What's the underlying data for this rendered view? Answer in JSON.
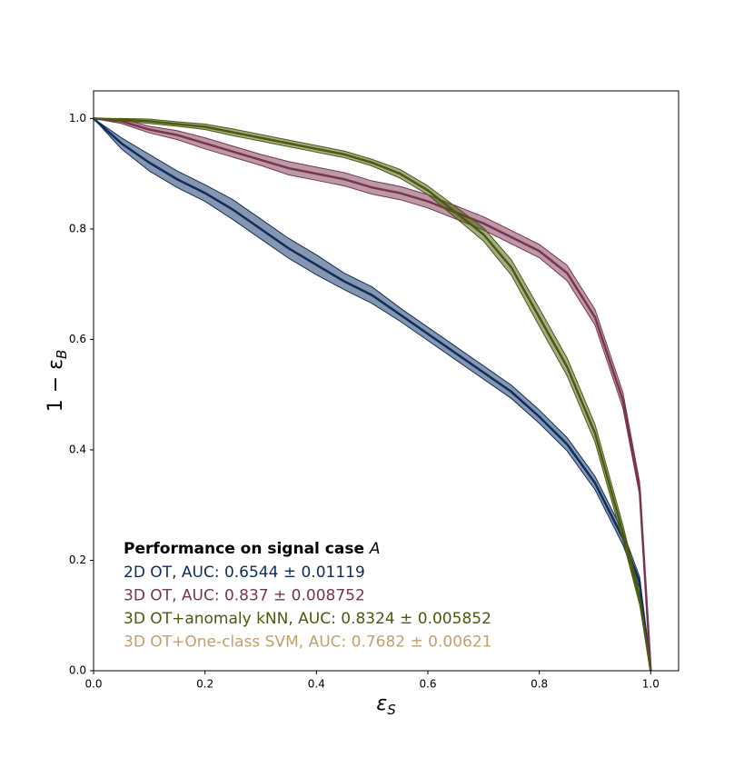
{
  "chart_data": {
    "type": "line",
    "xlabel": "ε",
    "xlabel_sub": "S",
    "ylabel": "1 − ε",
    "ylabel_sub": "B",
    "xlim": [
      0,
      1.05
    ],
    "ylim": [
      0,
      1.05
    ],
    "xticks": [
      {
        "value": 0,
        "label": "0.0"
      },
      0.2,
      0.4,
      0.6,
      0.8,
      {
        "value": 1,
        "label": "1.0"
      }
    ],
    "yticks": [
      {
        "value": 0,
        "label": "0.0"
      },
      0.2,
      0.4,
      0.6,
      0.8,
      {
        "value": 1,
        "label": "1.0"
      }
    ],
    "legend_title": "Performance on signal case ",
    "legend_title_symbol": "A",
    "legend": "lower left",
    "x": [
      0,
      0.05,
      0.1,
      0.15,
      0.2,
      0.25,
      0.3,
      0.35,
      0.4,
      0.45,
      0.5,
      0.55,
      0.6,
      0.65,
      0.7,
      0.75,
      0.8,
      0.85,
      0.9,
      0.95,
      0.98,
      1.0
    ],
    "series": [
      {
        "name": "2D OT, AUC: 0.6544 ± 0.01119",
        "color": "#0d2d5e",
        "values": [
          1.0,
          0.955,
          0.92,
          0.89,
          0.865,
          0.835,
          0.8,
          0.765,
          0.735,
          0.705,
          0.68,
          0.645,
          0.61,
          0.575,
          0.54,
          0.505,
          0.46,
          0.41,
          0.34,
          0.24,
          0.16,
          0.0
        ],
        "errors": [
          0,
          0.01,
          0.015,
          0.015,
          0.015,
          0.018,
          0.018,
          0.018,
          0.018,
          0.015,
          0.015,
          0.012,
          0.012,
          0.012,
          0.012,
          0.012,
          0.012,
          0.012,
          0.012,
          0.012,
          0.01,
          0
        ]
      },
      {
        "name": "3D OT, AUC: 0.837 ± 0.008752",
        "color": "#7a3450",
        "values": [
          1.0,
          0.995,
          0.98,
          0.97,
          0.955,
          0.94,
          0.925,
          0.91,
          0.9,
          0.89,
          0.875,
          0.865,
          0.85,
          0.83,
          0.81,
          0.785,
          0.76,
          0.72,
          0.64,
          0.49,
          0.33,
          0.0
        ],
        "errors": [
          0,
          0.004,
          0.006,
          0.008,
          0.01,
          0.01,
          0.01,
          0.012,
          0.012,
          0.012,
          0.012,
          0.012,
          0.012,
          0.012,
          0.012,
          0.012,
          0.012,
          0.014,
          0.014,
          0.014,
          0.012,
          0
        ]
      },
      {
        "name": "3D OT+anomaly kNN, AUC: 0.8324 ± 0.005852",
        "color": "#4a5a10",
        "values": [
          1.0,
          0.998,
          0.995,
          0.99,
          0.985,
          0.975,
          0.965,
          0.955,
          0.945,
          0.935,
          0.92,
          0.9,
          0.87,
          0.83,
          0.79,
          0.73,
          0.64,
          0.55,
          0.43,
          0.25,
          0.13,
          0.0
        ],
        "errors": [
          0,
          0.002,
          0.004,
          0.004,
          0.005,
          0.006,
          0.006,
          0.006,
          0.006,
          0.006,
          0.006,
          0.008,
          0.008,
          0.01,
          0.012,
          0.014,
          0.016,
          0.016,
          0.016,
          0.014,
          0.01,
          0
        ]
      },
      {
        "name": "3D OT+One-class SVM, AUC: 0.7682 ± 0.00621",
        "color": "#c2a06e"
      }
    ]
  }
}
